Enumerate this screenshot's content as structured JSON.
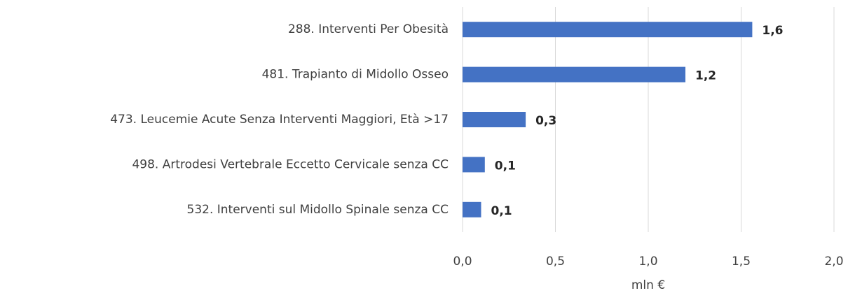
{
  "chart_data": {
    "type": "bar",
    "orientation": "horizontal",
    "categories": [
      "288. Interventi Per Obesità",
      "481. Trapianto di Midollo Osseo",
      "473. Leucemie Acute Senza Interventi Maggiori, Età >17",
      "498. Artrodesi Vertebrale Eccetto Cervicale senza CC",
      "532. Interventi sul Midollo Spinale senza CC"
    ],
    "values": [
      1.56,
      1.2,
      0.34,
      0.12,
      0.1
    ],
    "value_labels": [
      "1,6",
      "1,2",
      "0,3",
      "0,1",
      "0,1"
    ],
    "color": "#4472c4",
    "xlabel": "mln €",
    "xlim": [
      0,
      2
    ],
    "xticks": [
      {
        "value": 0,
        "label": "0,0"
      },
      {
        "value": 0.5,
        "label": "0,5"
      },
      {
        "value": 1,
        "label": "1,0"
      },
      {
        "value": 1.5,
        "label": "1,5"
      },
      {
        "value": 2,
        "label": "2,0"
      }
    ],
    "grid": true
  }
}
